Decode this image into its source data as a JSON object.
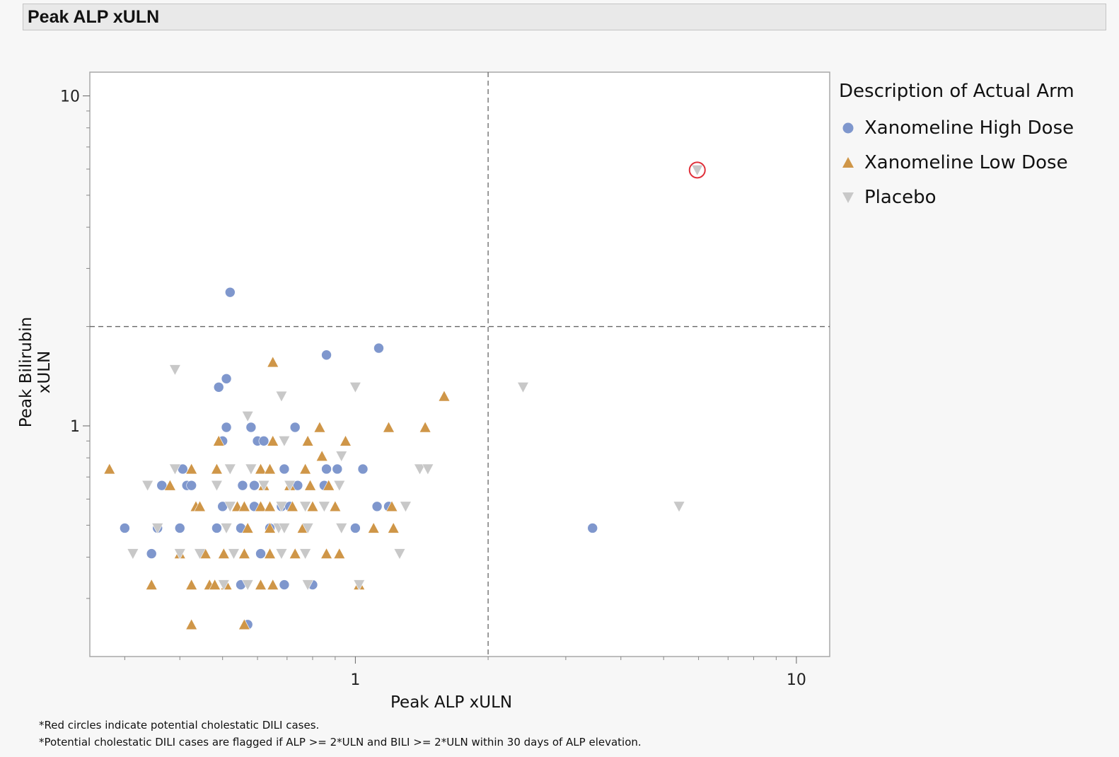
{
  "header": {
    "title": "Peak ALP xULN"
  },
  "footnotes": [
    "*Red circles indicate potential cholestatic DILI cases.",
    "*Potential cholestatic DILI cases are flagged if ALP >= 2*ULN and BILI >= 2*ULN within 30 days of ALP elevation."
  ],
  "chart_data": {
    "type": "scatter",
    "title": "Peak ALP xULN",
    "xlabel": "Peak ALP xULN",
    "ylabel": "Peak Bilirubin xULN",
    "xscale": "log",
    "yscale": "log",
    "xlim": [
      0.25,
      11.9
    ],
    "ylim": [
      0.2,
      11.8
    ],
    "xticks": [
      {
        "value": 1,
        "label": "1"
      },
      {
        "value": 10,
        "label": "10"
      }
    ],
    "yticks": [
      {
        "value": 1,
        "label": "1"
      },
      {
        "value": 10,
        "label": "10"
      }
    ],
    "reference_lines": {
      "x": 2,
      "y": 2,
      "style": "dashed"
    },
    "grid": false,
    "legend": {
      "title": "Description of Actual Arm",
      "position": "right"
    },
    "series": [
      {
        "name": "Xanomeline High Dose",
        "marker": "circle",
        "color": "#7f97cd",
        "points": [
          [
            0.52,
            2.54
          ],
          [
            0.86,
            1.64
          ],
          [
            1.13,
            1.72
          ],
          [
            0.51,
            1.39
          ],
          [
            0.49,
            1.31
          ],
          [
            0.51,
            0.99
          ],
          [
            0.58,
            0.99
          ],
          [
            0.73,
            0.99
          ],
          [
            0.5,
            0.9
          ],
          [
            0.6,
            0.9
          ],
          [
            0.62,
            0.9
          ],
          [
            0.406,
            0.74
          ],
          [
            0.86,
            0.74
          ],
          [
            0.91,
            0.74
          ],
          [
            1.04,
            0.74
          ],
          [
            0.69,
            0.74
          ],
          [
            0.364,
            0.66
          ],
          [
            0.415,
            0.66
          ],
          [
            0.425,
            0.66
          ],
          [
            0.555,
            0.66
          ],
          [
            0.59,
            0.66
          ],
          [
            0.74,
            0.66
          ],
          [
            0.85,
            0.66
          ],
          [
            0.5,
            0.57
          ],
          [
            1.12,
            0.57
          ],
          [
            1.19,
            0.57
          ],
          [
            0.59,
            0.57
          ],
          [
            0.68,
            0.57
          ],
          [
            0.71,
            0.57
          ],
          [
            0.3,
            0.49
          ],
          [
            0.356,
            0.49
          ],
          [
            0.4,
            0.49
          ],
          [
            0.485,
            0.49
          ],
          [
            1.0,
            0.49
          ],
          [
            3.45,
            0.49
          ],
          [
            0.55,
            0.49
          ],
          [
            0.64,
            0.49
          ],
          [
            0.345,
            0.41
          ],
          [
            0.61,
            0.41
          ],
          [
            0.55,
            0.33
          ],
          [
            0.69,
            0.33
          ],
          [
            0.8,
            0.33
          ],
          [
            0.57,
            0.25
          ]
        ]
      },
      {
        "name": "Xanomeline Low Dose",
        "marker": "triangle-up",
        "color": "#cf9648",
        "points": [
          [
            0.65,
            1.56
          ],
          [
            1.59,
            1.23
          ],
          [
            0.83,
            0.99
          ],
          [
            1.19,
            0.99
          ],
          [
            1.44,
            0.99
          ],
          [
            0.49,
            0.9
          ],
          [
            0.78,
            0.9
          ],
          [
            0.95,
            0.9
          ],
          [
            0.65,
            0.9
          ],
          [
            0.84,
            0.81
          ],
          [
            0.277,
            0.74
          ],
          [
            0.425,
            0.74
          ],
          [
            0.485,
            0.74
          ],
          [
            0.61,
            0.74
          ],
          [
            0.64,
            0.74
          ],
          [
            0.77,
            0.74
          ],
          [
            0.38,
            0.66
          ],
          [
            0.62,
            0.66
          ],
          [
            0.71,
            0.66
          ],
          [
            0.79,
            0.66
          ],
          [
            0.87,
            0.66
          ],
          [
            0.435,
            0.57
          ],
          [
            0.444,
            0.57
          ],
          [
            0.54,
            0.57
          ],
          [
            0.56,
            0.57
          ],
          [
            0.61,
            0.57
          ],
          [
            0.64,
            0.57
          ],
          [
            0.72,
            0.57
          ],
          [
            0.8,
            0.57
          ],
          [
            0.9,
            0.57
          ],
          [
            1.21,
            0.57
          ],
          [
            0.57,
            0.49
          ],
          [
            0.64,
            0.49
          ],
          [
            1.1,
            0.49
          ],
          [
            1.22,
            0.49
          ],
          [
            0.76,
            0.49
          ],
          [
            0.4,
            0.41
          ],
          [
            0.457,
            0.41
          ],
          [
            0.503,
            0.41
          ],
          [
            0.56,
            0.41
          ],
          [
            0.64,
            0.41
          ],
          [
            0.73,
            0.41
          ],
          [
            0.86,
            0.41
          ],
          [
            0.92,
            0.41
          ],
          [
            0.345,
            0.33
          ],
          [
            0.425,
            0.33
          ],
          [
            0.467,
            0.33
          ],
          [
            0.48,
            0.33
          ],
          [
            0.51,
            0.33
          ],
          [
            0.61,
            0.33
          ],
          [
            0.65,
            0.33
          ],
          [
            1.02,
            0.33
          ],
          [
            0.425,
            0.25
          ],
          [
            0.56,
            0.25
          ]
        ]
      },
      {
        "name": "Placebo",
        "marker": "triangle-down",
        "color": "#c8c8c8",
        "points": [
          [
            0.39,
            1.48
          ],
          [
            1.0,
            1.31
          ],
          [
            2.4,
            1.31
          ],
          [
            0.68,
            1.23
          ],
          [
            0.57,
            1.07
          ],
          [
            0.69,
            0.9
          ],
          [
            0.93,
            0.81
          ],
          [
            0.39,
            0.74
          ],
          [
            0.52,
            0.74
          ],
          [
            0.58,
            0.74
          ],
          [
            1.4,
            0.74
          ],
          [
            1.46,
            0.74
          ],
          [
            0.338,
            0.66
          ],
          [
            0.485,
            0.66
          ],
          [
            0.62,
            0.66
          ],
          [
            0.71,
            0.66
          ],
          [
            0.92,
            0.66
          ],
          [
            0.52,
            0.57
          ],
          [
            0.68,
            0.57
          ],
          [
            0.77,
            0.57
          ],
          [
            0.85,
            0.57
          ],
          [
            1.3,
            0.57
          ],
          [
            5.42,
            0.57
          ],
          [
            0.356,
            0.49
          ],
          [
            0.51,
            0.49
          ],
          [
            0.67,
            0.49
          ],
          [
            0.69,
            0.49
          ],
          [
            0.78,
            0.49
          ],
          [
            0.93,
            0.49
          ],
          [
            0.313,
            0.41
          ],
          [
            0.4,
            0.41
          ],
          [
            0.444,
            0.41
          ],
          [
            0.53,
            0.41
          ],
          [
            0.68,
            0.41
          ],
          [
            0.77,
            0.41
          ],
          [
            1.26,
            0.41
          ],
          [
            0.503,
            0.33
          ],
          [
            0.57,
            0.33
          ],
          [
            0.78,
            0.33
          ],
          [
            1.02,
            0.33
          ],
          [
            5.96,
            5.96
          ]
        ]
      }
    ],
    "flagged": [
      {
        "series": "Placebo",
        "x": 5.96,
        "y": 5.96,
        "highlight_color": "#e0303a"
      }
    ]
  }
}
